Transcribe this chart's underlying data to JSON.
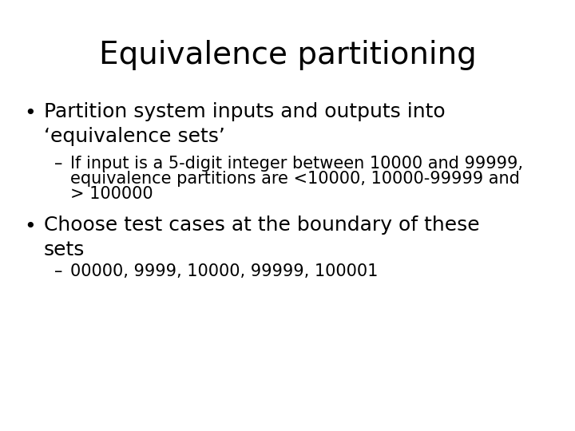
{
  "title": "Equivalence partitioning",
  "title_fontsize": 28,
  "background_color": "#ffffff",
  "text_color": "#000000",
  "bullet1_text": "Partition system inputs and outputs into\n‘equivalence sets’",
  "bullet1_fontsize": 18,
  "sub1_line1": "If input is a 5-digit integer between 10000 and 99999,",
  "sub1_line2": "equivalence partitions are <10000, 10000-99999 and",
  "sub1_line3": "> 100000",
  "sub1_fontsize": 15,
  "bullet2_text": "Choose test cases at the boundary of these\nsets",
  "bullet2_fontsize": 18,
  "sub2_text": "00000, 9999, 10000, 99999, 100001",
  "sub2_fontsize": 15,
  "font_family": "DejaVu Sans"
}
